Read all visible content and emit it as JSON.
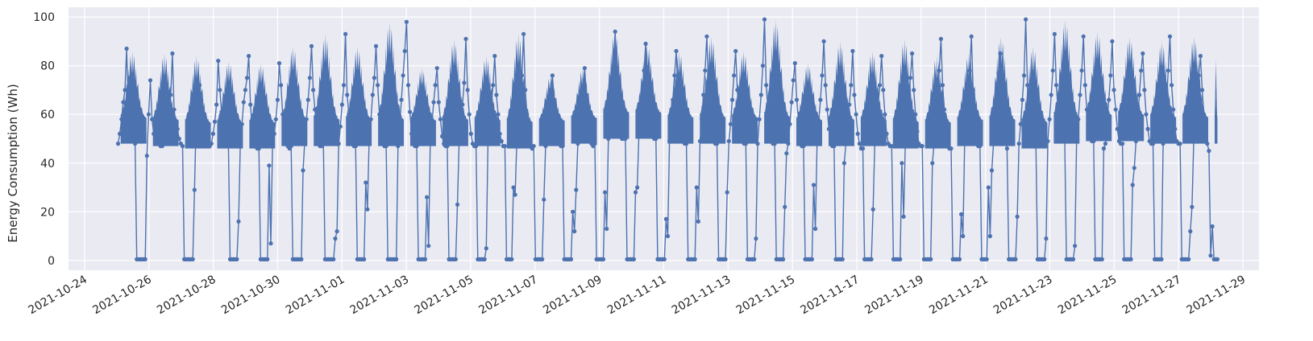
{
  "chart_data": {
    "type": "line",
    "title": "",
    "xlabel": "",
    "ylabel": "Energy Consumption (Wh)",
    "x_range": [
      "2021-10-23T12:00",
      "2021-11-29T12:00"
    ],
    "ylim": [
      -4,
      104
    ],
    "y_ticks": [
      0,
      20,
      40,
      60,
      80,
      100
    ],
    "x_ticks": [
      "2021-10-24",
      "2021-10-26",
      "2021-10-28",
      "2021-10-30",
      "2021-11-01",
      "2021-11-03",
      "2021-11-05",
      "2021-11-07",
      "2021-11-09",
      "2021-11-11",
      "2021-11-13",
      "2021-11-15",
      "2021-11-17",
      "2021-11-19",
      "2021-11-21",
      "2021-11-23",
      "2021-11-25",
      "2021-11-27",
      "2021-11-29"
    ],
    "grid": true,
    "marker": "circle",
    "colors": {
      "series": "#4c72b0",
      "plot_background": "#eaeaf2",
      "grid": "#ffffff"
    },
    "series": [
      {
        "x_start": "2021-10-25T01:00",
        "x_end": "2021-11-28T05:00",
        "daily_peak_values": [
          86,
          85,
          84,
          82,
          81,
          88,
          93,
          88,
          98,
          79,
          91,
          84,
          93,
          76,
          79,
          94,
          89,
          86,
          92,
          86,
          99,
          81,
          90,
          86,
          91,
          84,
          85,
          92,
          88,
          99,
          94,
          92,
          90,
          92,
          84
        ],
        "daily_min_active_values": [
          48,
          47,
          46,
          46,
          46,
          47,
          47,
          47,
          47,
          47,
          47,
          47,
          46,
          47,
          48,
          50,
          50,
          48,
          48,
          48,
          48,
          47,
          47,
          47,
          46,
          46,
          47,
          47,
          46,
          48,
          49,
          49,
          48,
          48,
          48
        ],
        "daily_idle_value": 0.5,
        "values": [
          48,
          52,
          58,
          65,
          70,
          87,
          62,
          75,
          53,
          49,
          48,
          0.5,
          0.5,
          0.5,
          0.5,
          0.5,
          0.5,
          43,
          60,
          74,
          58,
          52,
          50,
          48,
          49,
          47,
          47,
          48,
          50,
          56,
          63,
          68,
          85,
          62,
          57,
          54,
          50,
          48,
          47,
          0.5,
          0.5,
          0.5,
          0.5,
          0.5,
          0.5,
          29,
          58,
          69,
          72,
          66,
          58,
          52,
          49,
          47,
          47,
          48,
          52,
          57,
          64,
          82,
          70,
          61,
          55,
          49,
          48,
          47,
          0.5,
          0.5,
          0.5,
          0.5,
          0.5,
          16,
          47,
          56,
          65,
          70,
          75,
          84,
          64,
          55,
          50,
          47,
          46,
          46,
          0.5,
          0.5,
          0.5,
          0.5,
          0.5,
          39,
          7,
          47,
          52,
          58,
          66,
          81,
          72,
          60,
          52,
          48,
          47,
          46,
          47,
          0.5,
          0.5,
          0.5,
          0.5,
          0.5,
          0.5,
          37,
          49,
          58,
          66,
          75,
          88,
          70,
          62,
          55,
          49,
          47,
          47,
          48,
          0.5,
          0.5,
          0.5,
          0.5,
          0.5,
          0.5,
          9,
          12,
          48,
          55,
          64,
          72,
          93,
          68,
          60,
          52,
          48,
          47,
          47,
          0.5,
          0.5,
          0.5,
          0.5,
          0.5,
          32,
          21,
          50,
          58,
          68,
          75,
          88,
          72,
          60,
          53,
          49,
          47,
          47,
          0.5,
          0.5,
          0.5,
          0.5,
          0.5,
          0.5,
          47,
          56,
          66,
          76,
          86,
          98,
          72,
          61,
          52,
          48,
          47,
          47,
          0.5,
          0.5,
          0.5,
          0.5,
          0.5,
          26,
          6,
          48,
          56,
          65,
          72,
          79,
          65,
          58,
          51,
          48,
          47,
          47,
          0.5,
          0.5,
          0.5,
          0.5,
          0.5,
          23,
          48,
          55,
          64,
          73,
          91,
          70,
          60,
          52,
          48,
          47,
          47,
          0.5,
          0.5,
          0.5,
          0.5,
          0.5,
          5,
          48,
          56,
          64,
          72,
          84,
          68,
          60,
          52,
          49,
          47,
          47,
          0.5,
          0.5,
          0.5,
          0.5,
          30,
          27,
          49,
          57,
          66,
          76,
          93,
          70,
          60,
          53,
          48,
          46,
          47,
          0.5,
          0.5,
          0.5,
          0.5,
          0.5,
          25,
          47,
          54,
          62,
          70,
          76,
          66,
          58,
          52,
          48,
          47,
          47,
          0.5,
          0.5,
          0.5,
          0.5,
          0.5,
          20,
          12,
          29,
          48,
          54,
          62,
          70,
          79,
          68,
          58,
          51,
          48,
          47,
          48,
          0.5,
          0.5,
          0.5,
          0.5,
          0.5,
          28,
          13,
          50,
          58,
          68,
          78,
          94,
          72,
          62,
          54,
          50,
          50,
          50,
          0.5,
          0.5,
          0.5,
          0.5,
          0.5,
          28,
          30,
          52,
          60,
          68,
          78,
          89,
          72,
          62,
          55,
          51,
          50,
          50,
          0.5,
          0.5,
          0.5,
          0.5,
          0.5,
          17,
          10,
          49,
          57,
          66,
          76,
          86,
          70,
          62,
          54,
          50,
          48,
          48,
          0.5,
          0.5,
          0.5,
          0.5,
          0.5,
          30,
          16,
          49,
          58,
          68,
          78,
          92,
          72,
          62,
          55,
          50,
          48,
          48,
          0.5,
          0.5,
          0.5,
          0.5,
          0.5,
          28,
          49,
          56,
          66,
          76,
          86,
          70,
          60,
          53,
          49,
          48,
          48,
          0.5,
          0.5,
          0.5,
          0.5,
          0.5,
          9,
          48,
          58,
          68,
          80,
          99,
          72,
          62,
          54,
          49,
          48,
          48,
          0.5,
          0.5,
          0.5,
          0.5,
          0.5,
          22,
          44,
          48,
          56,
          65,
          74,
          81,
          66,
          58,
          51,
          47,
          47,
          0.5,
          0.5,
          0.5,
          0.5,
          0.5,
          31,
          13,
          48,
          57,
          66,
          76,
          90,
          72,
          62,
          54,
          48,
          47,
          47,
          0.5,
          0.5,
          0.5,
          0.5,
          0.5,
          40,
          48,
          56,
          64,
          72,
          86,
          68,
          60,
          52,
          48,
          46,
          46,
          0.5,
          0.5,
          0.5,
          0.5,
          0.5,
          21,
          48,
          56,
          64,
          72,
          84,
          70,
          60,
          52,
          48,
          47,
          47,
          0.5,
          0.5,
          0.5,
          0.5,
          0.5,
          40,
          18,
          48,
          56,
          65,
          75,
          85,
          70,
          60,
          53,
          48,
          47,
          47,
          0.5,
          0.5,
          0.5,
          0.5,
          0.5,
          40,
          48,
          58,
          68,
          78,
          91,
          72,
          62,
          54,
          48,
          46,
          46,
          0.5,
          0.5,
          0.5,
          0.5,
          0.5,
          19,
          10,
          48,
          58,
          68,
          78,
          92,
          70,
          60,
          52,
          47,
          47,
          0.5,
          0.5,
          0.5,
          0.5,
          30,
          10,
          37,
          48,
          58,
          68,
          77,
          85,
          70,
          60,
          52,
          46,
          0.5,
          0.5,
          0.5,
          0.5,
          0.5,
          18,
          48,
          56,
          66,
          76,
          99,
          72,
          62,
          55,
          50,
          48,
          48,
          0.5,
          0.5,
          0.5,
          0.5,
          0.5,
          9,
          49,
          58,
          68,
          78,
          93,
          72,
          62,
          55,
          50,
          49,
          49,
          0.5,
          0.5,
          0.5,
          0.5,
          0.5,
          6,
          49,
          58,
          68,
          78,
          92,
          72,
          62,
          55,
          50,
          49,
          49,
          0.5,
          0.5,
          0.5,
          0.5,
          0.5,
          46,
          48,
          57,
          66,
          76,
          90,
          70,
          62,
          54,
          49,
          48,
          48,
          0.5,
          0.5,
          0.5,
          0.5,
          0.5,
          31,
          38,
          49,
          58,
          68,
          78,
          85,
          70,
          60,
          54,
          49,
          48,
          48,
          0.5,
          0.5,
          0.5,
          0.5,
          0.5,
          48,
          57,
          66,
          78,
          92,
          72,
          62,
          54,
          49,
          48,
          48,
          0.5,
          0.5,
          0.5,
          0.5,
          0.5,
          12,
          22,
          49,
          58,
          68,
          76,
          84,
          70,
          60,
          53,
          48,
          45,
          2,
          14,
          0.5,
          0.5,
          0.5
        ]
      }
    ]
  }
}
